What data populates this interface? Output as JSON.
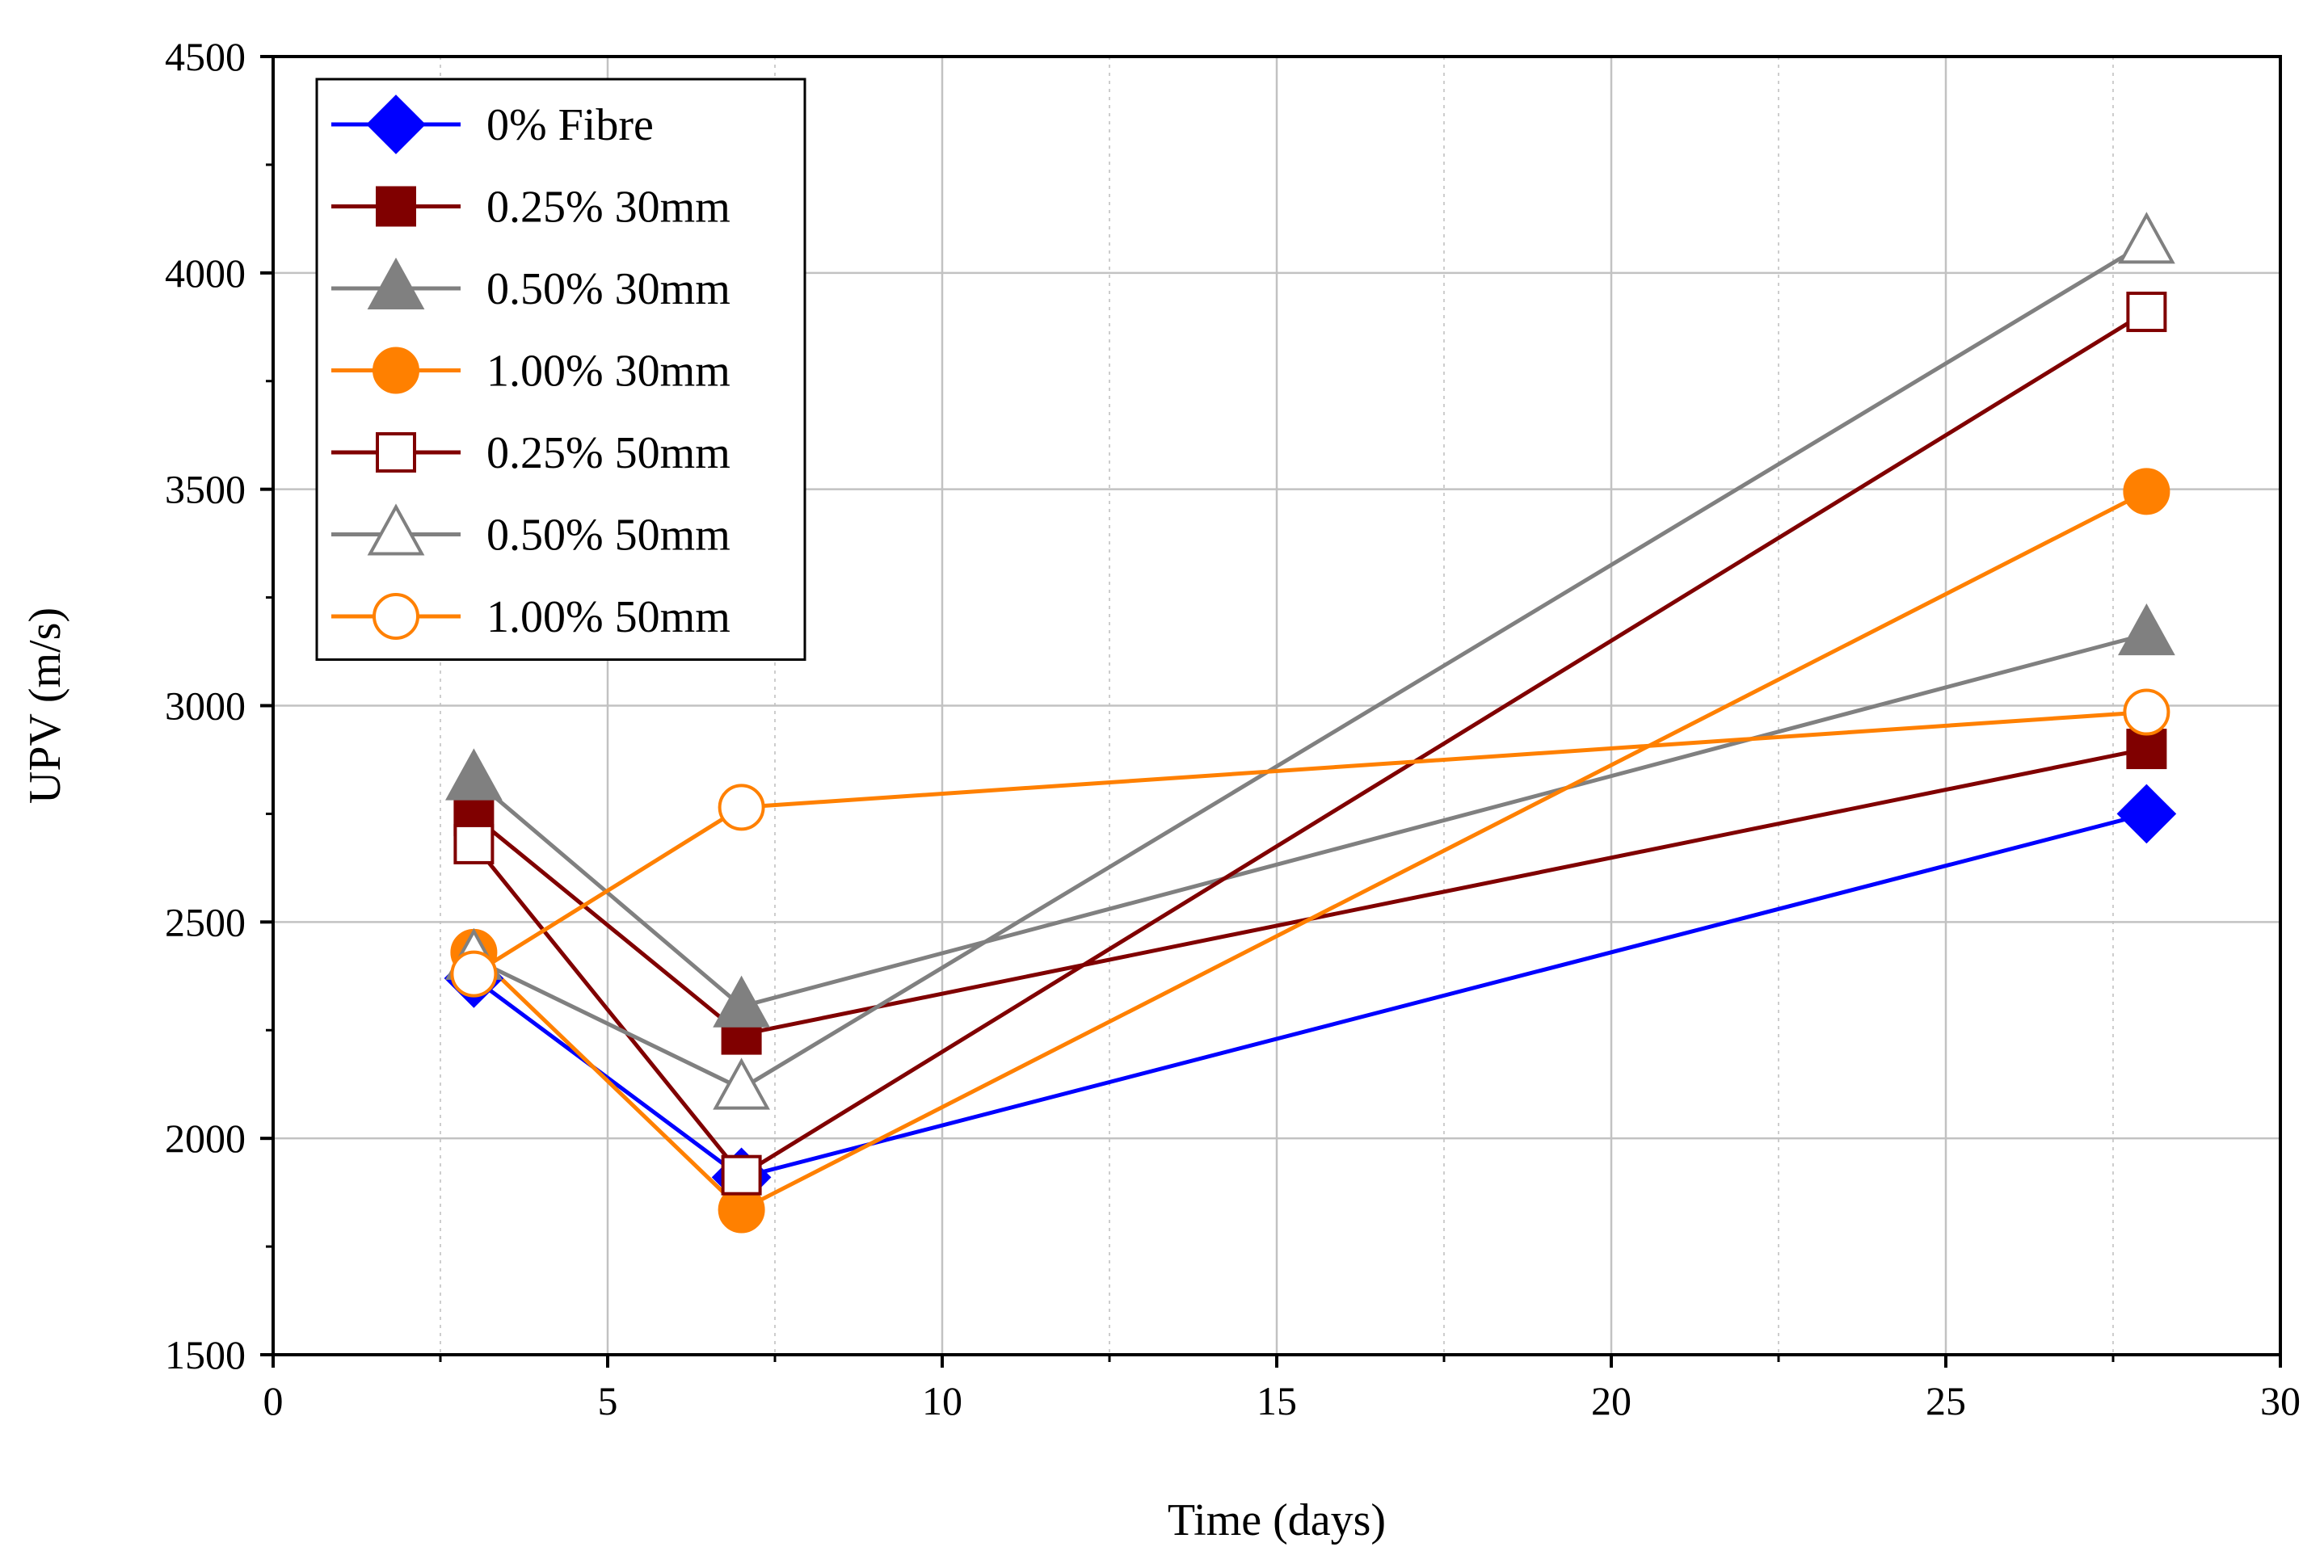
{
  "chart_data": {
    "type": "line",
    "xlabel": "Time (days)",
    "ylabel": "UPV (m/s)",
    "xlim": [
      0,
      30
    ],
    "ylim": [
      1500,
      4500
    ],
    "xticks": [
      0,
      5,
      10,
      15,
      20,
      25,
      30
    ],
    "yticks": [
      1500,
      2000,
      2500,
      3000,
      3500,
      4000,
      4500
    ],
    "x_tick_labels": [
      "0",
      "5",
      "10",
      "15",
      "20",
      "25",
      "30"
    ],
    "y_tick_labels": [
      "1500",
      "2000",
      "2500",
      "3000",
      "3500",
      "4000",
      "4500"
    ],
    "grid": true,
    "legend_position": "top-left",
    "x": [
      3,
      7,
      28
    ],
    "series": [
      {
        "name": "0% Fibre",
        "values": [
          2370,
          1910,
          2750
        ],
        "color": "#0000ff",
        "marker": "diamond",
        "filled": true
      },
      {
        "name": "0.25% 30mm",
        "values": [
          2745,
          2240,
          2900
        ],
        "color": "#800000",
        "marker": "square",
        "filled": true
      },
      {
        "name": "0.50% 30mm",
        "values": [
          2830,
          2305,
          3165
        ],
        "color": "#808080",
        "marker": "triangle",
        "filled": true
      },
      {
        "name": "1.00% 30mm",
        "values": [
          2430,
          1835,
          3495
        ],
        "color": "#ff8000",
        "marker": "circle",
        "filled": true
      },
      {
        "name": "0.25% 50mm",
        "values": [
          2680,
          1915,
          3910
        ],
        "color": "#800000",
        "marker": "square",
        "filled": false
      },
      {
        "name": "0.50% 50mm",
        "values": [
          2415,
          2115,
          4070
        ],
        "color": "#808080",
        "marker": "triangle",
        "filled": false
      },
      {
        "name": "1.00% 50mm",
        "values": [
          2380,
          2765,
          2985
        ],
        "color": "#ff8000",
        "marker": "circle",
        "filled": false
      }
    ]
  }
}
